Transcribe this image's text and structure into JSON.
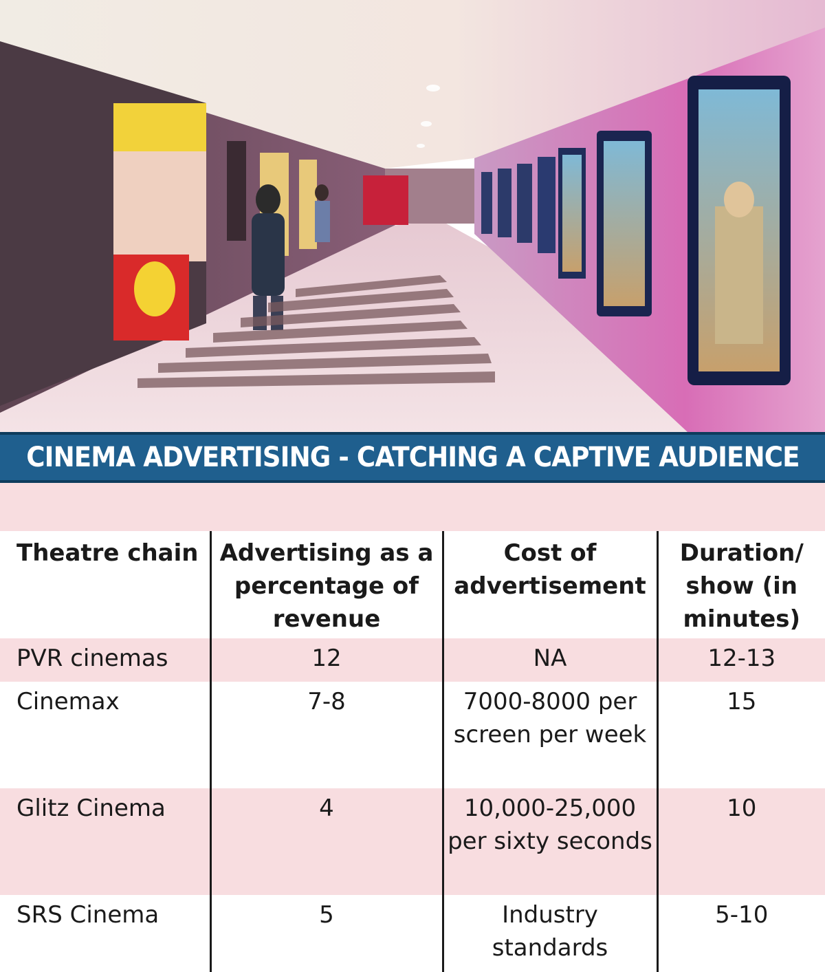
{
  "banner": {
    "title": "CINEMA ADVERTISING - CATCHING A CAPTIVE AUDIENCE",
    "background_color": "#1f5f8e",
    "text_color": "#ffffff"
  },
  "photo": {
    "subject": "multiplex-cinema-lobby-illustration"
  },
  "colors": {
    "row_highlight": "#f8dde0",
    "text": "#1a1a1a",
    "rule": "#1a1a1a"
  },
  "chart_data": {
    "type": "table",
    "title": "CINEMA ADVERTISING - CATCHING A CAPTIVE AUDIENCE",
    "columns": [
      "Theatre chain",
      "Advertising as a percentage of revenue",
      "Cost of advertisement",
      "Duration/ show (in minutes)"
    ],
    "rows": [
      [
        "PVR cinemas",
        "12",
        "NA",
        "12-13"
      ],
      [
        "Cinemax",
        "7-8",
        "7000-8000 per screen per week",
        "15"
      ],
      [
        "Glitz Cinema",
        "4",
        "10,000-25,000 per sixty seconds",
        "10"
      ],
      [
        "SRS Cinema",
        "5",
        "Industry standards",
        "5-10"
      ]
    ]
  }
}
